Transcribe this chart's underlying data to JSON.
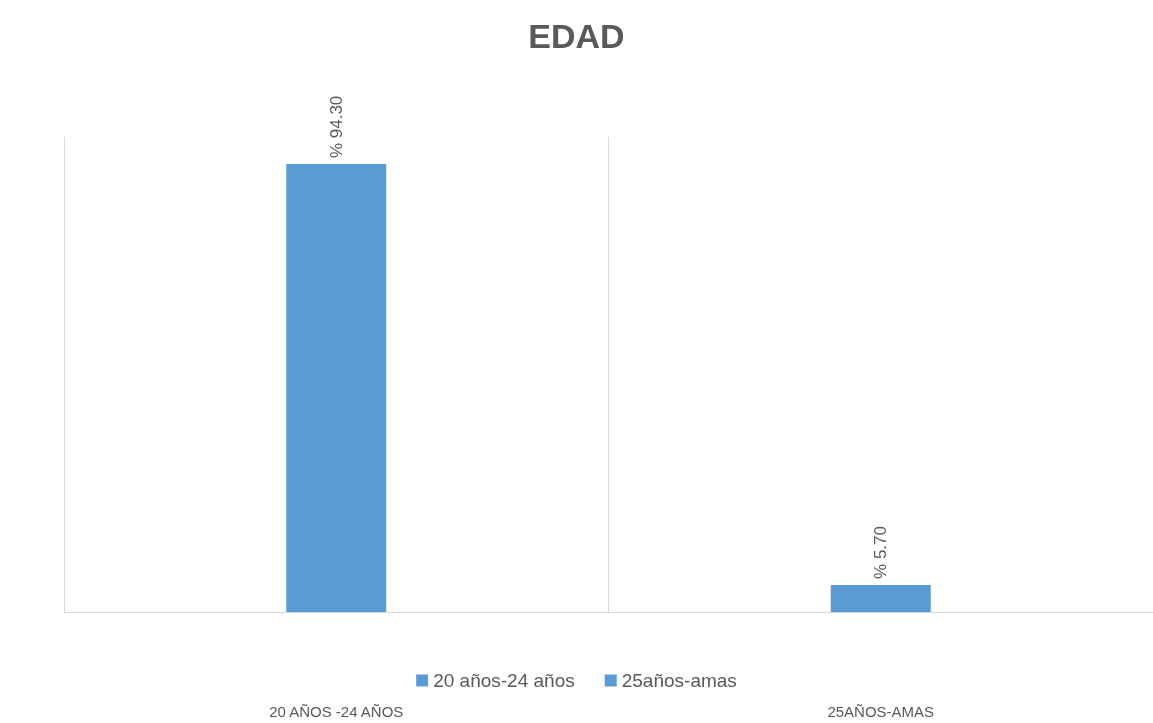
{
  "chart_data": {
    "type": "bar",
    "title": "EDAD",
    "categories": [
      "20 AÑOS -24 AÑOS",
      "25AÑOS-AMAS"
    ],
    "series": [
      {
        "name": "20 años-24 años",
        "color": "#5b9bd5",
        "values": [
          94.3,
          null
        ],
        "value_labels": [
          "% 94.30",
          null
        ]
      },
      {
        "name": "25años-amas",
        "color": "#5b9bd5",
        "values": [
          null,
          5.7
        ],
        "value_labels": [
          null,
          "% 5.70"
        ]
      }
    ],
    "grid": "x",
    "legend": "bottom"
  }
}
